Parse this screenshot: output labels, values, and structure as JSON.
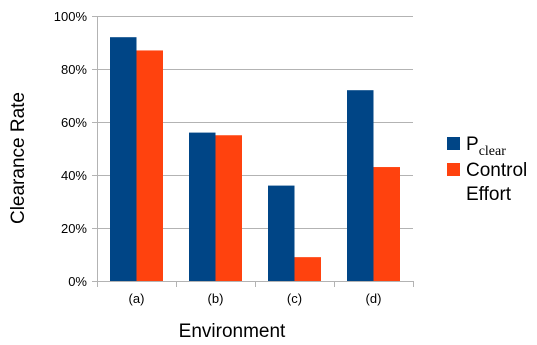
{
  "chart_data": {
    "type": "bar",
    "categories": [
      "(a)",
      "(b)",
      "(c)",
      "(d)"
    ],
    "series": [
      {
        "name_main": "P",
        "name_sub": "clear",
        "color": "#004586",
        "values": [
          0.92,
          0.56,
          0.36,
          0.72
        ]
      },
      {
        "name_lines": [
          "Control",
          "Effort"
        ],
        "color": "#ff420e",
        "values": [
          0.87,
          0.55,
          0.09,
          0.43
        ]
      }
    ],
    "ylim": [
      0,
      1
    ],
    "yticks": [
      0,
      0.2,
      0.4,
      0.6,
      0.8,
      1.0
    ],
    "ytick_labels": [
      "0%",
      "20%",
      "40%",
      "60%",
      "80%",
      "100%"
    ],
    "xlabel": "Environment",
    "ylabel": "Clearance Rate",
    "grid": true,
    "legend_position": "right"
  }
}
